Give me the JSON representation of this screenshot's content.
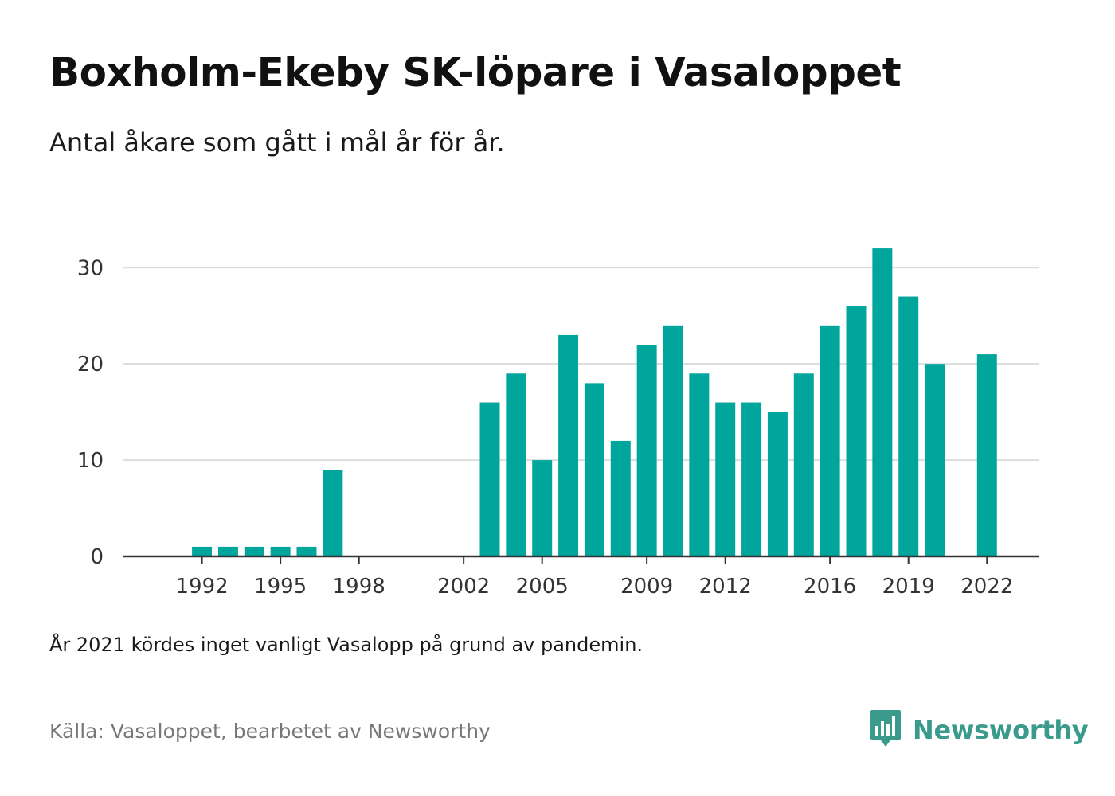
{
  "title": "Boxholm-Ekeby SK-löpare i Vasaloppet",
  "subtitle": "Antal åkare som gått i mål år för år.",
  "note": "År 2021 kördes inget vanligt Vasalopp på grund av pandemin.",
  "source": "Källa: Vasaloppet, bearbetet av Newsworthy",
  "brand": {
    "name": "Newsworthy",
    "icon": "newsworthy-logo-icon",
    "color": "#3a9a8c"
  },
  "colors": {
    "bar": "#00a59b",
    "grid": "#dddddd",
    "axis": "#333333"
  },
  "chart_data": {
    "type": "bar",
    "title": "Boxholm-Ekeby SK-löpare i Vasaloppet",
    "subtitle": "Antal åkare som gått i mål år för år.",
    "xlabel": "",
    "ylabel": "",
    "xlim": [
      1989,
      2024
    ],
    "ylim": [
      0,
      33
    ],
    "yticks": [
      0,
      10,
      20,
      30
    ],
    "xticks": [
      1992,
      1995,
      1998,
      2002,
      2005,
      2009,
      2012,
      2016,
      2019,
      2022
    ],
    "grid": true,
    "legend": "none",
    "x": [
      1992,
      1993,
      1994,
      1995,
      1996,
      1997,
      2003,
      2004,
      2005,
      2006,
      2007,
      2008,
      2009,
      2010,
      2011,
      2012,
      2013,
      2014,
      2015,
      2016,
      2017,
      2018,
      2019,
      2020,
      2022
    ],
    "values": [
      1,
      1,
      1,
      1,
      1,
      9,
      16,
      19,
      10,
      23,
      18,
      12,
      22,
      24,
      19,
      16,
      16,
      15,
      19,
      24,
      26,
      32,
      27,
      20,
      21
    ]
  }
}
